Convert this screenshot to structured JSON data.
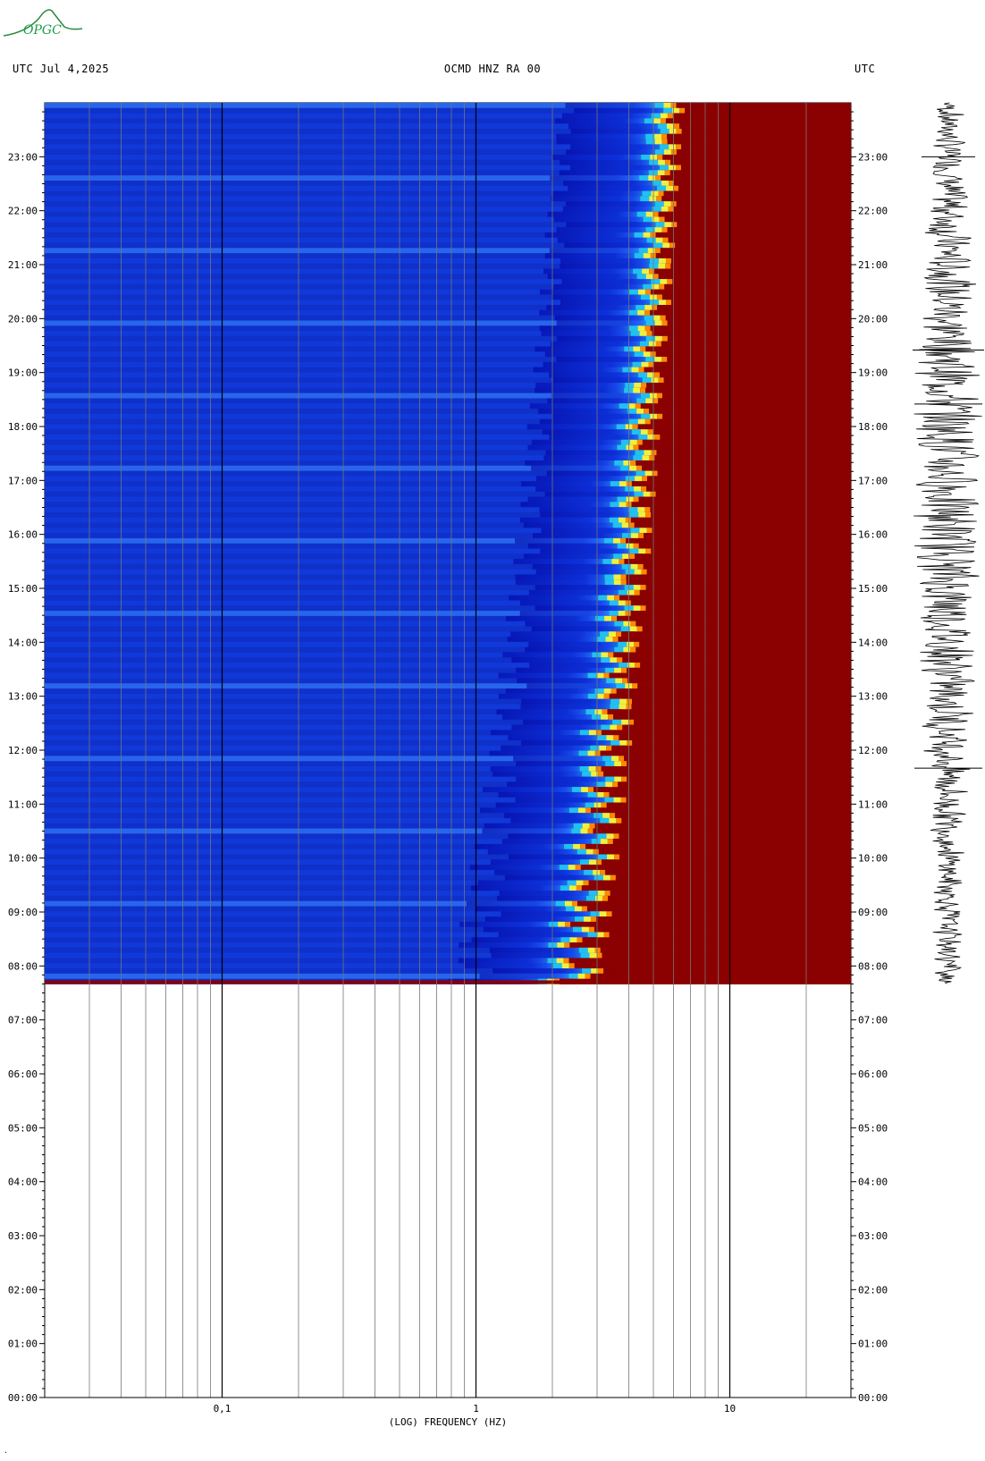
{
  "logo": {
    "text": "OPGC"
  },
  "header": {
    "left": "UTC  Jul 4,2025",
    "center": "OCMD HNZ RA 00",
    "right": "UTC"
  },
  "footer_mark": "·",
  "chart_data": {
    "type": "heatmap",
    "title": "OCMD HNZ RA 00",
    "xlabel": "(LOG) FREQUENCY (HZ)",
    "ylabel": "UTC",
    "x_scale": "log",
    "xlim": [
      0.02,
      30
    ],
    "x_ticks": [
      {
        "value": 0.1,
        "label": "0,1"
      },
      {
        "value": 1,
        "label": "1"
      },
      {
        "value": 10,
        "label": "10"
      }
    ],
    "ylim_hours": [
      0,
      24
    ],
    "y_tick_labels": [
      "00:00",
      "01:00",
      "02:00",
      "03:00",
      "04:00",
      "05:00",
      "06:00",
      "07:00",
      "08:00",
      "09:00",
      "10:00",
      "11:00",
      "12:00",
      "13:00",
      "14:00",
      "15:00",
      "16:00",
      "17:00",
      "18:00",
      "19:00",
      "20:00",
      "21:00",
      "22:00",
      "23:00"
    ],
    "data_start_utc": "07:40",
    "data_end_utc": "24:00",
    "colormap": [
      "#0000a0",
      "#0a2cdc",
      "#1e5cff",
      "#22c0f0",
      "#40ffd0",
      "#f0f040",
      "#ff8800",
      "#e01010",
      "#8b0000"
    ],
    "saturation_band_hz": [
      10,
      30
    ],
    "accent_colors": {
      "background": "#ffffff",
      "saturated": "#8b0000",
      "trace": "#000000"
    }
  }
}
